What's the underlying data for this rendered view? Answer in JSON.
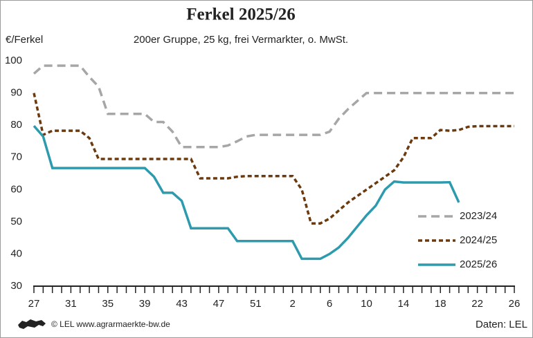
{
  "chart_data": {
    "type": "line",
    "title": "Ferkel 2025/26",
    "subtitle": "200er Gruppe, 25 kg, frei Vermarkter, o. MwSt.",
    "y_label": "€/Ferkel",
    "source_left": "© LEL www.agrarmaerkte-bw.de",
    "source_right": "Daten: LEL",
    "categories": [
      "27",
      null,
      null,
      null,
      "31",
      null,
      null,
      null,
      "35",
      null,
      null,
      null,
      "39",
      null,
      null,
      null,
      "43",
      null,
      null,
      null,
      "47",
      null,
      null,
      null,
      "51",
      null,
      null,
      null,
      "2",
      null,
      null,
      null,
      "6",
      null,
      null,
      null,
      "10",
      null,
      null,
      null,
      "14",
      null,
      null,
      null,
      "18",
      null,
      null,
      null,
      "22",
      null,
      null,
      null,
      "26"
    ],
    "series": [
      {
        "name": "2023/24",
        "color": "#a6a6a6",
        "dash": "12,7",
        "values": [
          96,
          98.5,
          98.5,
          98.5,
          98.5,
          98.5,
          95,
          92,
          83.5,
          83.5,
          83.5,
          83.5,
          83.5,
          81,
          81,
          78,
          73.2,
          73.2,
          73.2,
          73.2,
          73.2,
          73.7,
          75,
          76.5,
          77,
          77,
          77,
          77,
          77,
          77,
          77,
          77,
          78,
          82,
          85,
          87.5,
          90,
          90,
          90,
          90,
          90,
          90,
          90,
          90,
          90,
          90,
          90,
          90,
          90,
          90,
          90,
          90,
          90
        ]
      },
      {
        "name": "2024/25",
        "color": "#6b3a0f",
        "dash": "6,4",
        "values": [
          90,
          77,
          78.3,
          78.3,
          78.3,
          78.3,
          76,
          69.5,
          69.5,
          69.5,
          69.5,
          69.5,
          69.5,
          69.5,
          69.5,
          69.5,
          69.5,
          69.5,
          63.5,
          63.5,
          63.5,
          63.5,
          64,
          64.2,
          64.2,
          64.2,
          64.2,
          64.2,
          64.2,
          60,
          49.5,
          49.5,
          51,
          53.5,
          56,
          58,
          60,
          62,
          64,
          66,
          70,
          76,
          76,
          76,
          78.5,
          78.3,
          78.5,
          79.5,
          79.7,
          79.7,
          79.7,
          79.7,
          79.7
        ]
      },
      {
        "name": "2025/26",
        "color": "#2e9aad",
        "dash": "",
        "values": [
          79.8,
          76.5,
          66.7,
          66.7,
          66.7,
          66.7,
          66.7,
          66.7,
          66.7,
          66.7,
          66.7,
          66.7,
          66.7,
          64,
          59,
          59,
          56.5,
          48,
          48,
          48,
          48,
          48,
          44,
          44,
          44,
          44,
          44,
          44,
          44,
          38.5,
          38.5,
          38.5,
          40,
          42,
          45,
          48.5,
          52,
          55,
          60,
          62.5,
          62.2,
          62.2,
          62.2,
          62.2,
          62.2,
          62.3,
          56,
          null,
          null,
          null,
          null,
          null,
          null
        ]
      }
    ],
    "ylim": [
      30,
      100
    ],
    "yticks": [
      30,
      40,
      50,
      60,
      70,
      80,
      90,
      100
    ],
    "grid": false,
    "legend": "lower right"
  }
}
